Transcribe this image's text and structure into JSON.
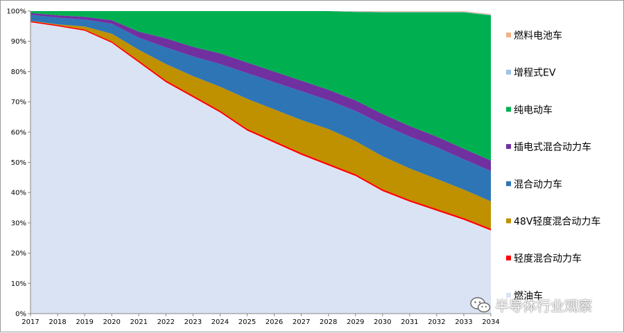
{
  "chart_data": {
    "type": "area",
    "stacked": true,
    "percent": true,
    "x": [
      "2017",
      "2018",
      "2019",
      "2020",
      "2021",
      "2022",
      "2023",
      "2024",
      "2025",
      "2026",
      "2027",
      "2028",
      "2029",
      "2030",
      "2031",
      "2032",
      "2033",
      "2034"
    ],
    "ylim": [
      0,
      100
    ],
    "yticks": [
      "0%",
      "10%",
      "20%",
      "30%",
      "40%",
      "50%",
      "60%",
      "70%",
      "80%",
      "90%",
      "100%"
    ],
    "legend_position": "right",
    "series": [
      {
        "name": "燃油车",
        "color": "#DAE3F3",
        "values": [
          96.3,
          95.0,
          93.5,
          89.5,
          83.0,
          76.5,
          71.5,
          66.5,
          60.5,
          56.5,
          52.5,
          49.0,
          45.5,
          40.5,
          37.0,
          34.0,
          31.0,
          27.5
        ]
      },
      {
        "name": "轻度混合动力车",
        "color": "#FF0000",
        "values": [
          0.4,
          0.4,
          0.4,
          0.5,
          0.6,
          0.6,
          0.6,
          0.6,
          0.6,
          0.6,
          0.6,
          0.6,
          0.6,
          0.6,
          0.6,
          0.6,
          0.6,
          0.6
        ]
      },
      {
        "name": "48V轻度混合动力车",
        "color": "#BF9000",
        "values": [
          0.1,
          0.2,
          1.0,
          2.5,
          3.6,
          5.4,
          6.4,
          7.9,
          9.9,
          10.4,
          10.9,
          11.4,
          10.9,
          10.9,
          10.4,
          9.9,
          9.4,
          9.0
        ]
      },
      {
        "name": "混合动力车",
        "color": "#2E75B6",
        "values": [
          2.0,
          2.2,
          2.3,
          3.3,
          4.0,
          5.5,
          6.5,
          7.5,
          8.5,
          9.0,
          9.5,
          9.5,
          10.0,
          10.5,
          10.5,
          10.5,
          10.0,
          10.0
        ]
      },
      {
        "name": "插电式混合动力车",
        "color": "#7030A0",
        "values": [
          0.6,
          0.8,
          0.9,
          1.2,
          2.0,
          3.0,
          3.2,
          3.5,
          3.5,
          3.5,
          3.5,
          3.5,
          3.5,
          3.5,
          3.5,
          3.5,
          3.5,
          3.5
        ]
      },
      {
        "name": "纯电动车",
        "color": "#00B050",
        "values": [
          0.6,
          1.4,
          1.9,
          3.0,
          6.8,
          9.0,
          11.8,
          14.0,
          17.0,
          20.0,
          23.0,
          26.0,
          29.2,
          33.6,
          37.6,
          41.1,
          45.1,
          48.0
        ]
      },
      {
        "name": "增程式EV",
        "color": "#9DC3E6",
        "values": [
          0,
          0,
          0,
          0,
          0,
          0,
          0,
          0,
          0,
          0,
          0,
          0,
          0.2,
          0.2,
          0.2,
          0.2,
          0.2,
          0.2
        ]
      },
      {
        "name": "燃料电池车",
        "color": "#F4B183",
        "values": [
          0,
          0,
          0,
          0,
          0,
          0,
          0,
          0,
          0,
          0,
          0,
          0,
          0.1,
          0.2,
          0.2,
          0.2,
          0.2,
          0.2
        ]
      }
    ]
  },
  "watermark": {
    "text": "半导体行业观察",
    "icon": "wechat-icon"
  }
}
